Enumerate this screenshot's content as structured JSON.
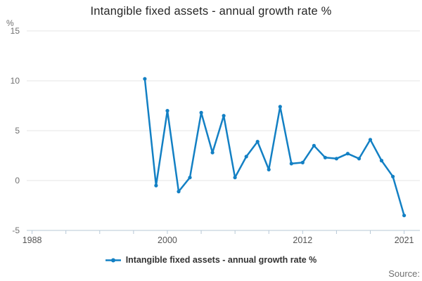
{
  "title": "Intangible fixed assets - annual growth rate %",
  "y_axis": {
    "unit": "%",
    "ticks": [
      15,
      10,
      5,
      0,
      -5
    ]
  },
  "x_axis": {
    "tick_years": [
      1988,
      1991,
      1994,
      1997,
      2000,
      2003,
      2006,
      2009,
      2012,
      2015,
      2018,
      2021
    ],
    "labeled_years": [
      1988,
      2000,
      2012,
      2021
    ]
  },
  "legend": {
    "label": "Intangible fixed assets - annual growth rate %"
  },
  "footer": {
    "source_label": "Source:"
  },
  "colors": {
    "line": "#1380c4",
    "grid": "#e6e6e6",
    "axis": "#b7c8d6",
    "muted_text": "#707070",
    "x_label_text": "#555555",
    "title_text": "#262626",
    "legend_text": "#333333"
  },
  "chart_data": {
    "type": "line",
    "title": "Intangible fixed assets - annual growth rate %",
    "xlabel": "",
    "ylabel": "%",
    "ylim": [
      -5,
      15
    ],
    "xlim": [
      1988,
      2021
    ],
    "grid": true,
    "legend_position": "bottom",
    "markers": true,
    "series": [
      {
        "name": "Intangible fixed assets - annual growth rate %",
        "x": [
          1998,
          1999,
          2000,
          2001,
          2002,
          2003,
          2004,
          2005,
          2006,
          2007,
          2008,
          2009,
          2010,
          2011,
          2012,
          2013,
          2014,
          2015,
          2016,
          2017,
          2018,
          2019,
          2020,
          2021
        ],
        "values": [
          10.2,
          -0.5,
          7.0,
          -1.1,
          0.3,
          6.8,
          2.8,
          6.5,
          0.3,
          2.4,
          3.9,
          1.1,
          7.4,
          1.7,
          1.8,
          3.5,
          2.3,
          2.2,
          2.7,
          2.2,
          4.1,
          2.0,
          0.4,
          -3.5
        ]
      }
    ]
  }
}
